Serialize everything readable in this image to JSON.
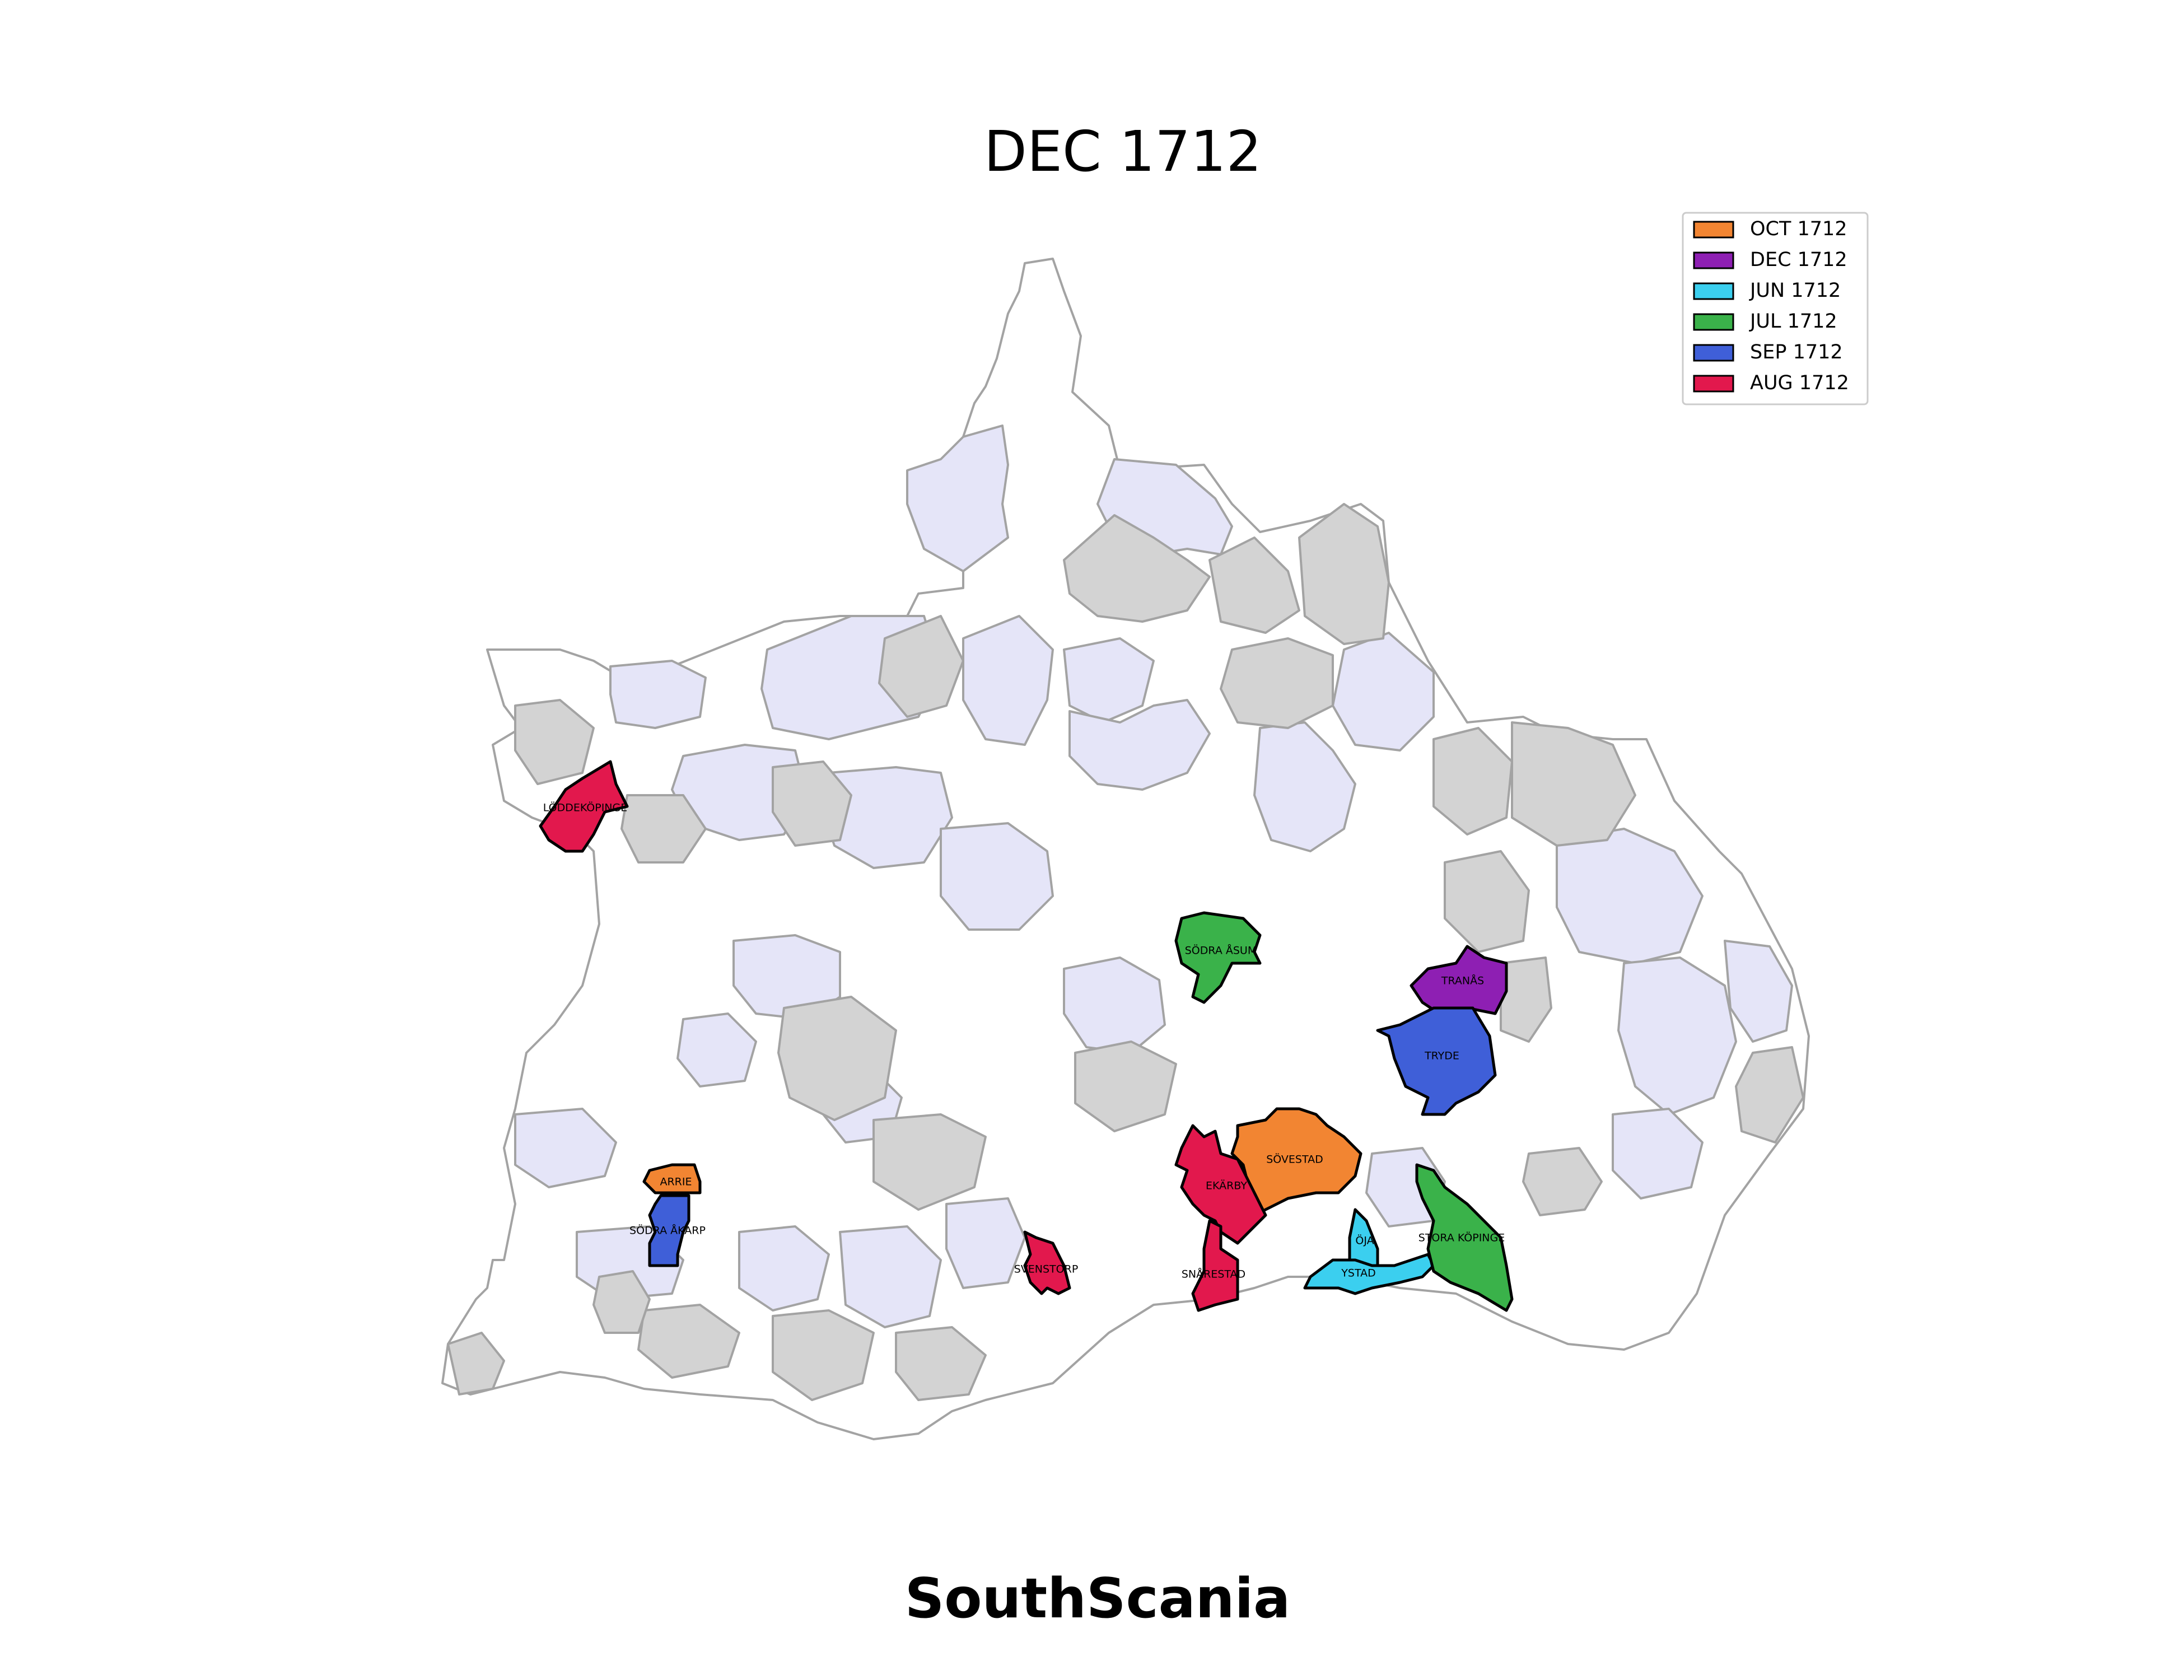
{
  "title": "DEC 1712",
  "caption": "SouthScania",
  "colors": {
    "background": "#ffffff",
    "border": "#a3a3a3",
    "uninfected_visited": "#e5e5f8",
    "grey_region": "#d3d3d3",
    "plain_region": "#ffffff"
  },
  "legend": {
    "placement": "top-right",
    "entries": [
      {
        "label": "OCT 1712",
        "color": "#f28532"
      },
      {
        "label": "DEC 1712",
        "color": "#8e1fb3"
      },
      {
        "label": "JUN 1712",
        "color": "#3bcfef"
      },
      {
        "label": "JUL 1712",
        "color": "#3ab24a"
      },
      {
        "label": "SEP 1712",
        "color": "#3f5fd8"
      },
      {
        "label": "AUG 1712",
        "color": "#e2184d"
      }
    ]
  },
  "highlighted_parishes": [
    {
      "name": "LÖDDEKÖPINGE",
      "period": "AUG 1712",
      "color": "#e2184d"
    },
    {
      "name": "SÖDRA ÅSUM",
      "period": "JUL 1712",
      "color": "#3ab24a"
    },
    {
      "name": "TRANÅS",
      "period": "DEC 1712",
      "color": "#8e1fb3"
    },
    {
      "name": "TRYDE",
      "period": "SEP 1712",
      "color": "#3f5fd8"
    },
    {
      "name": "SÖVESTAD",
      "period": "OCT 1712",
      "color": "#f28532"
    },
    {
      "name": "EKÄRBY",
      "period": "AUG 1712",
      "color": "#e2184d"
    },
    {
      "name": "ARRIE",
      "period": "OCT 1712",
      "color": "#f28532"
    },
    {
      "name": "SÖDRA ÅKARP",
      "period": "SEP 1712",
      "color": "#3f5fd8"
    },
    {
      "name": "SVENSTORP",
      "period": "AUG 1712",
      "color": "#e2184d"
    },
    {
      "name": "SNÅRESTAD",
      "period": "AUG 1712",
      "color": "#e2184d"
    },
    {
      "name": "ÖJA",
      "period": "JUN 1712",
      "color": "#3bcfef"
    },
    {
      "name": "YSTAD",
      "period": "JUN 1712",
      "color": "#3bcfef"
    },
    {
      "name": "STORA KÖPINGE",
      "period": "JUL 1712",
      "color": "#3ab24a"
    }
  ]
}
